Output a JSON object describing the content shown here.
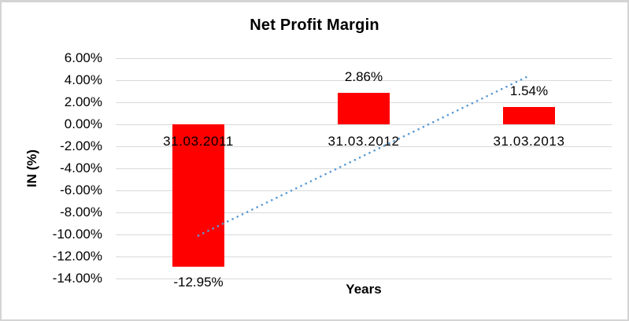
{
  "chart_data": {
    "type": "bar",
    "title": "Net Profit Margin",
    "xlabel": "Years",
    "ylabel": "IN (%)",
    "categories": [
      "31.03.2011",
      "31.03.2012",
      "31.03.2013"
    ],
    "values": [
      -12.95,
      2.86,
      1.54
    ],
    "data_labels": [
      "-12.95%",
      "2.86%",
      "1.54%"
    ],
    "y_ticks": [
      "6.00%",
      "4.00%",
      "2.00%",
      "0.00%",
      "-2.00%",
      "-4.00%",
      "-6.00%",
      "-8.00%",
      "-10.00%",
      "-12.00%",
      "-14.00%"
    ],
    "ylim": [
      -14,
      6
    ],
    "y_tick_step": 2,
    "grid": true,
    "legend": "none",
    "bar_color": "#ff0000",
    "gridline_color": "#d9d9d9",
    "text_color": "#000000",
    "trendline": {
      "type": "linear",
      "style": "dotted",
      "color": "#5b9bd5",
      "start_value": -10.1,
      "end_value": 4.4
    }
  }
}
